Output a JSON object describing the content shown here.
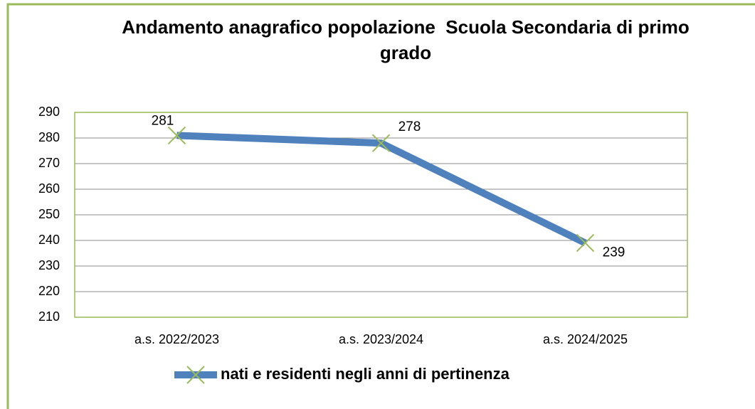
{
  "chart_data": {
    "type": "line",
    "title": "Andamento anagrafico popolazione  Scuola Secondaria di primo grado",
    "categories": [
      "a.s. 2022/2023",
      "a.s. 2023/2024",
      "a.s. 2024/2025"
    ],
    "series": [
      {
        "name": "nati e residenti negli anni di pertinenza",
        "color": "#4f81bd",
        "marker_color": "#9bbb59",
        "values": [
          281,
          278,
          239
        ]
      }
    ],
    "ylim": [
      210,
      290
    ],
    "yticks": [
      210,
      220,
      230,
      240,
      250,
      260,
      270,
      280,
      290
    ],
    "grid": true,
    "legend": "bottom"
  }
}
